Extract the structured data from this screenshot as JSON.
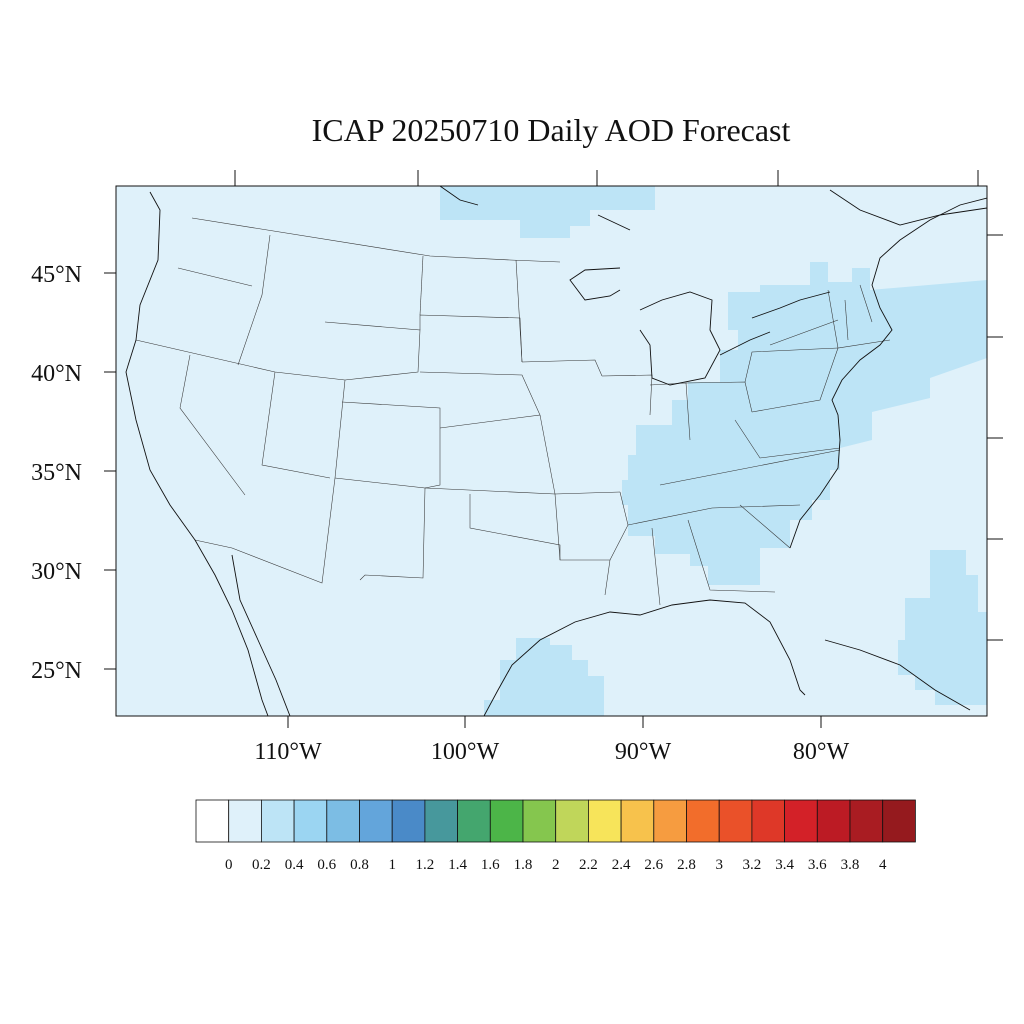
{
  "title": "ICAP 20250710 Daily AOD Forecast",
  "axes": {
    "lat_labels": [
      "45°N",
      "40°N",
      "35°N",
      "30°N",
      "25°N"
    ],
    "lon_labels": [
      "110°W",
      "100°W",
      "90°W",
      "80°W"
    ]
  },
  "colorbar": {
    "labels": [
      "0",
      "0.2",
      "0.4",
      "0.6",
      "0.8",
      "1",
      "1.2",
      "1.4",
      "1.6",
      "1.8",
      "2",
      "2.2",
      "2.4",
      "2.6",
      "2.8",
      "3",
      "3.2",
      "3.4",
      "3.6",
      "3.8",
      "4"
    ],
    "colors": [
      "#ffffff",
      "#dff1fa",
      "#bde4f6",
      "#9bd5f2",
      "#7cbde4",
      "#63a5db",
      "#4a8ac8",
      "#47989c",
      "#44a66e",
      "#4cb548",
      "#85c64e",
      "#c0d65a",
      "#f7e45a",
      "#f7c24c",
      "#f69c40",
      "#f26d2b",
      "#ea5129",
      "#de3828",
      "#d32128",
      "#bc1b24",
      "#a91c22",
      "#951a1e"
    ]
  },
  "map": {
    "background_color": "#dff1fa",
    "highlight_color": "#bde4f6"
  }
}
